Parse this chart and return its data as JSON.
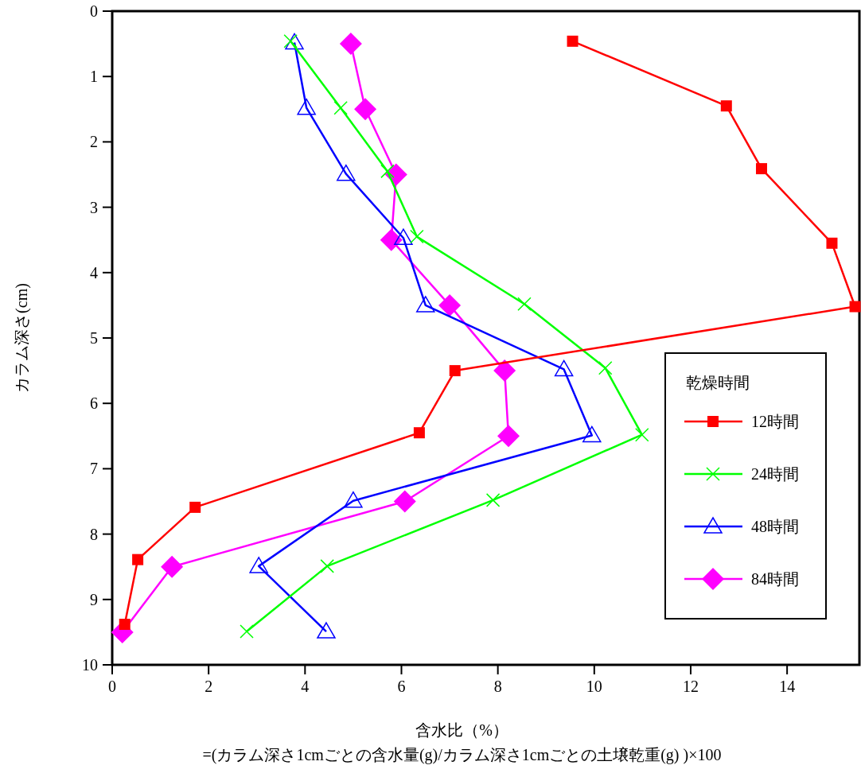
{
  "chart_data": {
    "type": "line",
    "xlabel": "含水比（%）",
    "ylabel": "カラム深さ(cm)",
    "legend_title": "乾燥時間",
    "annotations": [
      "=(カラム深さ1cmごとの含水量(g)/カラム深さ1cmごとの土壌乾重(g) )×100"
    ],
    "xlim": [
      0,
      15.5
    ],
    "xticks": [
      0,
      2,
      4,
      6,
      8,
      10,
      12,
      14
    ],
    "ylim": [
      10,
      0
    ],
    "yticks": [
      0,
      1,
      2,
      3,
      4,
      5,
      6,
      7,
      8,
      9,
      10
    ],
    "legend": "right",
    "grid": false,
    "line_style": "solid",
    "series": [
      {
        "name": "12時間",
        "color": "#ff0000",
        "marker": "square",
        "x": [
          9.55,
          12.74,
          13.47,
          14.93,
          15.41,
          7.11,
          6.37,
          1.72,
          0.53,
          0.26
        ],
        "values": [
          0.46,
          1.45,
          2.41,
          3.55,
          4.52,
          5.5,
          6.45,
          7.59,
          8.39,
          9.38
        ]
      },
      {
        "name": "24時間",
        "color": "#00ff00",
        "marker": "cross",
        "x": [
          3.7,
          4.74,
          5.71,
          6.32,
          8.55,
          10.23,
          10.99,
          7.9,
          4.46,
          2.79
        ],
        "values": [
          0.46,
          1.48,
          2.45,
          3.45,
          4.48,
          5.46,
          6.48,
          7.48,
          8.49,
          9.49
        ]
      },
      {
        "name": "48時間",
        "color": "#0000ff",
        "marker": "triangle",
        "x": [
          3.78,
          4.03,
          4.85,
          6.04,
          6.5,
          9.37,
          9.95,
          5.0,
          3.04,
          4.44
        ],
        "values": [
          0.48,
          1.48,
          2.49,
          3.47,
          4.5,
          5.48,
          6.49,
          7.49,
          8.49,
          9.49
        ]
      },
      {
        "name": "84時間",
        "color": "#ff00ff",
        "marker": "diamond",
        "x": [
          4.95,
          5.25,
          5.89,
          5.79,
          7.0,
          8.14,
          8.22,
          6.07,
          1.24,
          0.21
        ],
        "values": [
          0.5,
          1.5,
          2.5,
          3.5,
          4.5,
          5.5,
          6.5,
          7.5,
          8.5,
          9.5
        ]
      }
    ]
  }
}
